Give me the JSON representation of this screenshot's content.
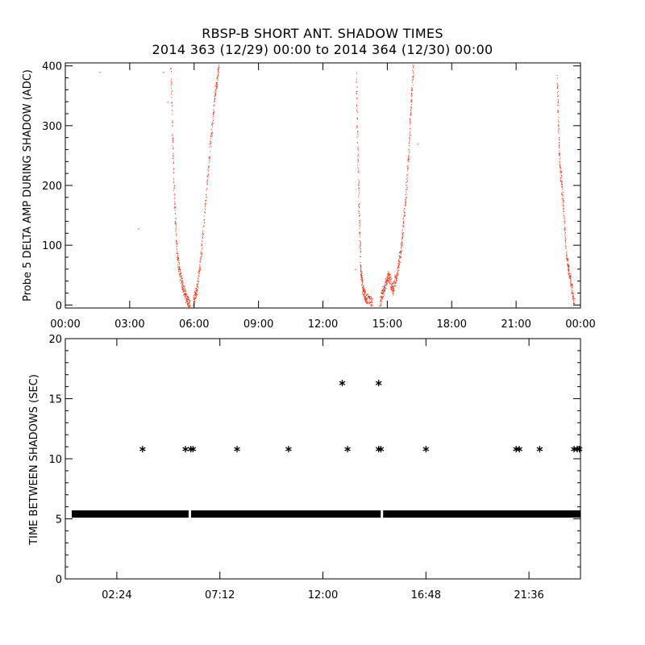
{
  "title": "RBSP-B SHORT ANT. SHADOW TIMES",
  "subtitle": "2014 363 (12/29) 00:00 to 2014 364 (12/30) 00:00",
  "colors": {
    "scatter": "#ff2200",
    "axes": "#000000",
    "background": "#ffffff"
  },
  "chart_data": [
    {
      "type": "scatter",
      "ylabel": "Probe 5 DELTA AMP DURING SHADOW (ADC)",
      "xlabel": "",
      "x_unit": "hours since 2014-12-29 00:00",
      "xlim": [
        0,
        24
      ],
      "ylim": [
        -5,
        405
      ],
      "x_ticks": [
        0,
        3,
        6,
        9,
        12,
        15,
        18,
        21,
        24
      ],
      "x_tick_labels": [
        "00:00",
        "03:00",
        "06:00",
        "09:00",
        "12:00",
        "15:00",
        "18:00",
        "21:00",
        "00:00"
      ],
      "y_ticks": [
        0,
        100,
        200,
        300,
        400
      ],
      "y_tick_labels": [
        "0",
        "100",
        "200",
        "300",
        "400"
      ],
      "series": [
        {
          "color": "#ff2200",
          "segments": [
            {
              "points": [
                [
                  4.9,
                  400
                ],
                [
                  5.05,
                  200
                ],
                [
                  5.2,
                  80
                ],
                [
                  5.4,
                  40
                ],
                [
                  5.6,
                  15
                ],
                [
                  5.8,
                  0
                ]
              ]
            },
            {
              "points": [
                [
                  5.95,
                  5
                ],
                [
                  6.15,
                  30
                ],
                [
                  6.4,
                  120
                ],
                [
                  6.7,
                  250
                ],
                [
                  6.95,
                  350
                ],
                [
                  7.15,
                  400
                ]
              ]
            },
            {
              "points": [
                [
                  13.55,
                  380
                ],
                [
                  13.65,
                  200
                ],
                [
                  13.75,
                  60
                ],
                [
                  13.85,
                  25
                ],
                [
                  14.0,
                  12
                ],
                [
                  14.3,
                  5
                ]
              ]
            },
            {
              "points": [
                [
                  14.65,
                  5
                ],
                [
                  14.85,
                  30
                ],
                [
                  15.05,
                  50
                ],
                [
                  15.25,
                  25
                ],
                [
                  15.45,
                  55
                ],
                [
                  15.65,
                  100
                ],
                [
                  15.85,
                  180
                ],
                [
                  16.05,
                  300
                ],
                [
                  16.2,
                  400
                ]
              ]
            },
            {
              "points": [
                [
                  22.9,
                  380
                ],
                [
                  23.0,
                  250
                ],
                [
                  23.15,
                  180
                ],
                [
                  23.35,
                  80
                ],
                [
                  23.5,
                  45
                ],
                [
                  23.7,
                  5
                ]
              ]
            }
          ],
          "isolated_points": [
            [
              1.6,
              390
            ],
            [
              3.4,
              128
            ],
            [
              4.55,
              390
            ],
            [
              4.75,
              340
            ],
            [
              13.5,
              60
            ],
            [
              16.4,
              270
            ]
          ]
        }
      ]
    },
    {
      "type": "scatter",
      "ylabel": "TIME BETWEEN SHADOWS (SEC)",
      "xlabel": "",
      "x_unit": "hours since 2014-12-29 00:00",
      "xlim": [
        0,
        24
      ],
      "ylim": [
        0,
        20
      ],
      "x_ticks": [
        2.4,
        7.2,
        12.0,
        16.8,
        21.6
      ],
      "x_tick_labels": [
        "02:24",
        "07:12",
        "12:00",
        "16:48",
        "21:36"
      ],
      "y_ticks": [
        0,
        5,
        10,
        15,
        20
      ],
      "y_tick_labels": [
        "0",
        "5",
        "10",
        "15",
        "20"
      ],
      "marker": "asterisk",
      "baseline": {
        "value": 5.4,
        "gaps": [
          5.8,
          14.75
        ]
      },
      "points": [
        {
          "x": 3.6,
          "y": 10.8
        },
        {
          "x": 5.6,
          "y": 10.8
        },
        {
          "x": 5.85,
          "y": 10.8
        },
        {
          "x": 5.95,
          "y": 10.8
        },
        {
          "x": 8.0,
          "y": 10.8
        },
        {
          "x": 10.4,
          "y": 10.8
        },
        {
          "x": 12.9,
          "y": 16.3
        },
        {
          "x": 13.15,
          "y": 10.8
        },
        {
          "x": 14.6,
          "y": 16.3
        },
        {
          "x": 14.6,
          "y": 10.8
        },
        {
          "x": 14.7,
          "y": 10.8
        },
        {
          "x": 16.8,
          "y": 10.8
        },
        {
          "x": 21.0,
          "y": 10.8
        },
        {
          "x": 21.15,
          "y": 10.8
        },
        {
          "x": 22.1,
          "y": 10.8
        },
        {
          "x": 23.7,
          "y": 10.8
        },
        {
          "x": 23.85,
          "y": 10.8
        },
        {
          "x": 23.95,
          "y": 10.8
        }
      ]
    }
  ]
}
